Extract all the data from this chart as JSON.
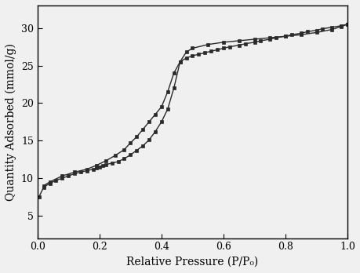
{
  "adsorption_x": [
    0.005,
    0.02,
    0.04,
    0.06,
    0.08,
    0.1,
    0.12,
    0.14,
    0.16,
    0.18,
    0.19,
    0.2,
    0.21,
    0.22,
    0.24,
    0.26,
    0.28,
    0.3,
    0.32,
    0.34,
    0.36,
    0.38,
    0.4,
    0.42,
    0.44,
    0.46,
    0.48,
    0.5,
    0.55,
    0.6,
    0.65,
    0.7,
    0.75,
    0.8,
    0.85,
    0.9,
    0.95,
    0.98,
    1.0
  ],
  "adsorption_y": [
    7.5,
    8.8,
    9.3,
    9.7,
    10.0,
    10.3,
    10.6,
    10.8,
    11.0,
    11.2,
    11.35,
    11.5,
    11.65,
    11.8,
    12.0,
    12.2,
    12.6,
    13.1,
    13.7,
    14.3,
    15.1,
    16.2,
    17.5,
    19.2,
    22.0,
    25.5,
    26.8,
    27.3,
    27.8,
    28.1,
    28.3,
    28.5,
    28.7,
    28.9,
    29.1,
    29.4,
    29.8,
    30.2,
    30.5
  ],
  "desorption_x": [
    1.0,
    0.98,
    0.95,
    0.92,
    0.9,
    0.87,
    0.85,
    0.82,
    0.8,
    0.77,
    0.75,
    0.72,
    0.7,
    0.67,
    0.65,
    0.62,
    0.6,
    0.58,
    0.56,
    0.54,
    0.52,
    0.5,
    0.48,
    0.46,
    0.44,
    0.42,
    0.4,
    0.38,
    0.36,
    0.34,
    0.32,
    0.3,
    0.28,
    0.25,
    0.22,
    0.19,
    0.16,
    0.12,
    0.08,
    0.04,
    0.02
  ],
  "desorption_y": [
    30.5,
    30.3,
    30.1,
    29.9,
    29.7,
    29.5,
    29.3,
    29.1,
    28.9,
    28.7,
    28.5,
    28.3,
    28.1,
    27.9,
    27.7,
    27.5,
    27.3,
    27.1,
    26.9,
    26.7,
    26.5,
    26.3,
    26.0,
    25.5,
    24.0,
    21.5,
    19.5,
    18.5,
    17.5,
    16.5,
    15.5,
    14.7,
    13.8,
    13.0,
    12.3,
    11.7,
    11.2,
    10.8,
    10.3,
    9.5,
    9.0
  ],
  "xlabel": "Relative Pressure (P/P₀)",
  "ylabel": "Quantity Adsorbed (mmol/g)",
  "xlim": [
    0.0,
    1.0
  ],
  "ylim": [
    2,
    33
  ],
  "xticks": [
    0.0,
    0.2,
    0.4,
    0.6,
    0.8,
    1.0
  ],
  "yticks": [
    5,
    10,
    15,
    20,
    25,
    30
  ],
  "marker": "s",
  "color": "#2a2a2a",
  "linewidth": 1.0,
  "markersize": 3.5,
  "bg_color": "#f0f0f0",
  "tick_fontsize": 9,
  "label_fontsize": 10
}
